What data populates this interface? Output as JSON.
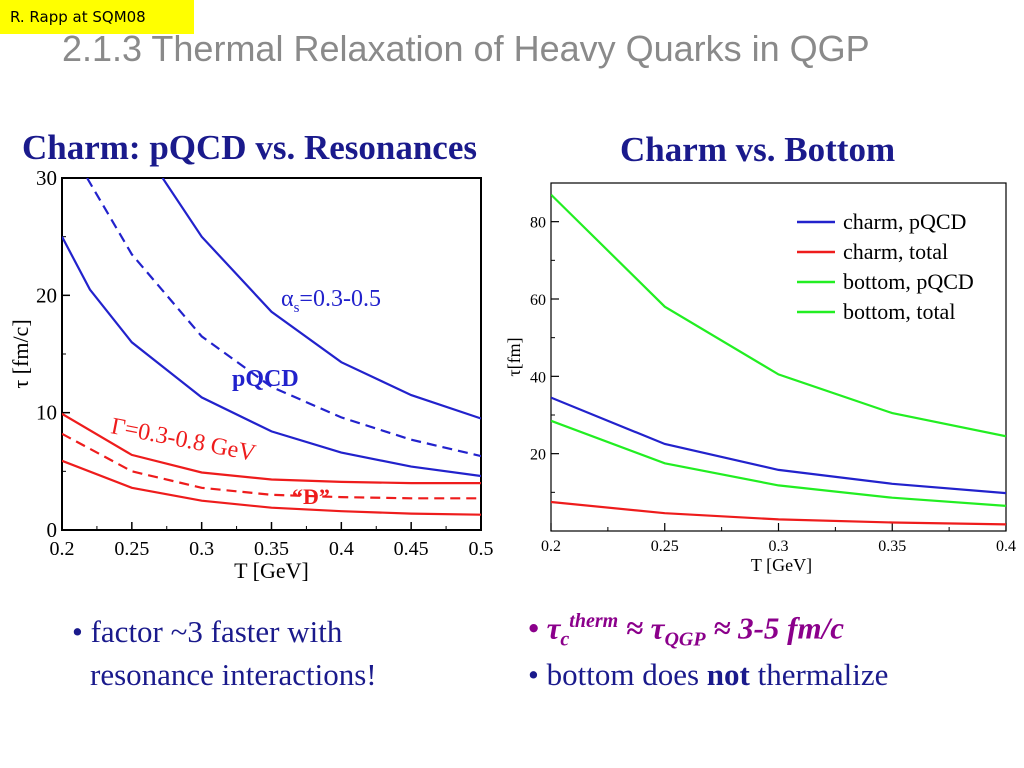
{
  "tag": "R. Rapp at SQM08",
  "title": "2.1.3 Thermal Relaxation of Heavy Quarks in QGP",
  "colors": {
    "blue": "#2222cc",
    "red": "#ee1c1c",
    "green": "#22ee22",
    "text_blue": "#1a1a8c",
    "purple": "#8b008b"
  },
  "bullets": {
    "left_1": "• factor ~3 faster with",
    "left_2": "resonance interactions!",
    "right_1_prefix": "• τ",
    "right_1_sub": "c",
    "right_1_sup": "therm",
    "right_1_mid": " ≈ τ",
    "right_1_sub2": "QGP",
    "right_1_end": " ≈ 3-5 fm/c",
    "right_2_a": "• bottom does ",
    "right_2_b": "not",
    "right_2_c": " thermalize"
  },
  "chart_data": [
    {
      "type": "line",
      "title": "Charm: pQCD vs. Resonances",
      "xlabel": "T [GeV]",
      "ylabel": "τ [fm/c]",
      "xlim": [
        0.2,
        0.5
      ],
      "ylim": [
        0,
        30
      ],
      "xticks": [
        "0.2",
        "0.25",
        "0.3",
        "0.35",
        "0.4",
        "0.45",
        "0.5"
      ],
      "yticks": [
        "0",
        "10",
        "20",
        "30"
      ],
      "annotations": [
        {
          "text": "α",
          "sub": "s",
          "rest": "=0.3-0.5",
          "color": "blue"
        },
        {
          "text": "pQCD",
          "color": "blue"
        },
        {
          "text": "Γ=0.3-0.8 GeV",
          "color": "red"
        },
        {
          "text": "“D”",
          "color": "red"
        }
      ],
      "series": [
        {
          "color": "blue",
          "dash": false,
          "x": [
            0.2,
            0.22,
            0.25,
            0.3,
            0.35,
            0.4,
            0.45,
            0.5
          ],
          "y": [
            25.0,
            20.5,
            16.0,
            11.3,
            8.4,
            6.6,
            5.4,
            4.6
          ]
        },
        {
          "color": "blue",
          "dash": true,
          "x": [
            0.218,
            0.25,
            0.3,
            0.35,
            0.4,
            0.45,
            0.5
          ],
          "y": [
            30.0,
            23.5,
            16.5,
            12.2,
            9.6,
            7.7,
            6.3
          ]
        },
        {
          "color": "blue",
          "dash": false,
          "x": [
            0.272,
            0.3,
            0.35,
            0.4,
            0.45,
            0.5
          ],
          "y": [
            30.0,
            25.0,
            18.6,
            14.3,
            11.5,
            9.5
          ]
        },
        {
          "color": "red",
          "dash": false,
          "x": [
            0.2,
            0.25,
            0.3,
            0.35,
            0.4,
            0.45,
            0.5
          ],
          "y": [
            9.9,
            6.4,
            4.9,
            4.3,
            4.1,
            4.0,
            4.0
          ]
        },
        {
          "color": "red",
          "dash": true,
          "x": [
            0.2,
            0.25,
            0.3,
            0.35,
            0.4,
            0.45,
            0.5
          ],
          "y": [
            8.2,
            5.0,
            3.6,
            3.0,
            2.8,
            2.7,
            2.7
          ]
        },
        {
          "color": "red",
          "dash": false,
          "x": [
            0.2,
            0.25,
            0.3,
            0.35,
            0.4,
            0.45,
            0.5
          ],
          "y": [
            5.9,
            3.6,
            2.5,
            1.9,
            1.6,
            1.4,
            1.3
          ]
        }
      ]
    },
    {
      "type": "line",
      "title": "Charm vs. Bottom",
      "xlabel": "T [GeV]",
      "ylabel": "τ[fm]",
      "xlim": [
        0.2,
        0.4
      ],
      "ylim": [
        0,
        90
      ],
      "xticks": [
        "0.2",
        "0.25",
        "0.3",
        "0.35",
        "0.4"
      ],
      "yticks": [
        "20",
        "40",
        "60",
        "80"
      ],
      "legend_position": "top-right",
      "legend": [
        {
          "name": "charm, pQCD",
          "color": "blue"
        },
        {
          "name": "charm, total",
          "color": "red"
        },
        {
          "name": "bottom, pQCD",
          "color": "green"
        },
        {
          "name": "bottom, total",
          "color": "green"
        }
      ],
      "series": [
        {
          "name": "charm, pQCD",
          "color": "blue",
          "x": [
            0.2,
            0.25,
            0.3,
            0.35,
            0.4
          ],
          "y": [
            34.5,
            22.5,
            15.8,
            12.2,
            9.8
          ]
        },
        {
          "name": "charm, total",
          "color": "red",
          "x": [
            0.2,
            0.25,
            0.3,
            0.35,
            0.4
          ],
          "y": [
            7.5,
            4.6,
            3.0,
            2.2,
            1.7
          ]
        },
        {
          "name": "bottom, pQCD",
          "color": "green",
          "x": [
            0.2,
            0.25,
            0.3,
            0.35,
            0.4
          ],
          "y": [
            87.0,
            58.0,
            40.5,
            30.5,
            24.5
          ]
        },
        {
          "name": "bottom, total",
          "color": "green",
          "x": [
            0.2,
            0.25,
            0.3,
            0.35,
            0.4
          ],
          "y": [
            28.5,
            17.5,
            11.8,
            8.6,
            6.5
          ]
        }
      ]
    }
  ]
}
